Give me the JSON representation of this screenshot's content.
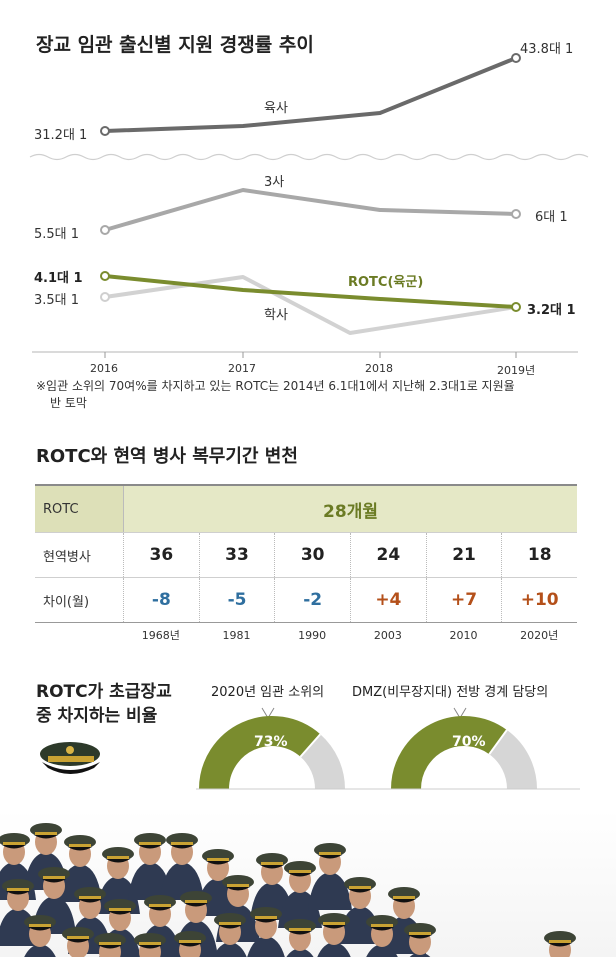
{
  "section1": {
    "title": "장교 임관 출신별 지원 경쟁률 추이",
    "note_line1": "※임관 소위의 70여%를 차지하고 있는 ROTC는 2014년 6.1대1에서 지난해 2.3대1로 지원율",
    "note_line2": "반 토막"
  },
  "chart_data": {
    "type": "line",
    "title": "장교 임관 출신별 지원 경쟁률 추이",
    "x": [
      "2016",
      "2017",
      "2018",
      "2019년"
    ],
    "series": [
      {
        "name": "육사",
        "color": "#6a6a6a",
        "values": [
          31.2,
          null,
          null,
          43.8
        ],
        "start_label": "31.2대 1",
        "end_label": "43.8대 1"
      },
      {
        "name": "3사",
        "color": "#a8a8a8",
        "values": [
          5.5,
          null,
          null,
          6
        ],
        "start_label": "5.5대 1",
        "end_label": "6대 1"
      },
      {
        "name": "ROTC(육군)",
        "color": "#7a8c2e",
        "values": [
          4.1,
          null,
          null,
          3.2
        ],
        "start_label": "4.1대 1",
        "end_label": "3.2대 1"
      },
      {
        "name": "학사",
        "color": "#d2d2d2",
        "values": [
          3.5,
          null,
          null,
          3.2
        ],
        "start_label": "3.5대 1",
        "end_label": ""
      }
    ],
    "axis_break": true
  },
  "section2": {
    "title": "ROTC와 현역 병사 복무기간 변천",
    "rotc_label": "ROTC",
    "rotc_value": "28개월",
    "soldier_label": "현역병사",
    "soldier_values": [
      "36",
      "33",
      "30",
      "24",
      "21",
      "18"
    ],
    "diff_label": "차이(월)",
    "diff_values": [
      "-8",
      "-5",
      "-2",
      "+4",
      "+7",
      "+10"
    ],
    "years": [
      "1968년",
      "1981",
      "1990",
      "2003",
      "2010",
      "2020년"
    ]
  },
  "section3": {
    "title_line1": "ROTC가 초급장교",
    "title_line2": "중 차지하는 비율",
    "donuts": [
      {
        "caption": "2020년 임관 소위의",
        "value_label": "73%",
        "value": 73,
        "color": "#7a8c2e"
      },
      {
        "caption": "DMZ(비무장지대) 전방 경계 담당의",
        "value_label": "70%",
        "value": 70,
        "color": "#7a8c2e"
      }
    ]
  },
  "photo": {
    "description_icon": "cadets-crowd-photo"
  }
}
